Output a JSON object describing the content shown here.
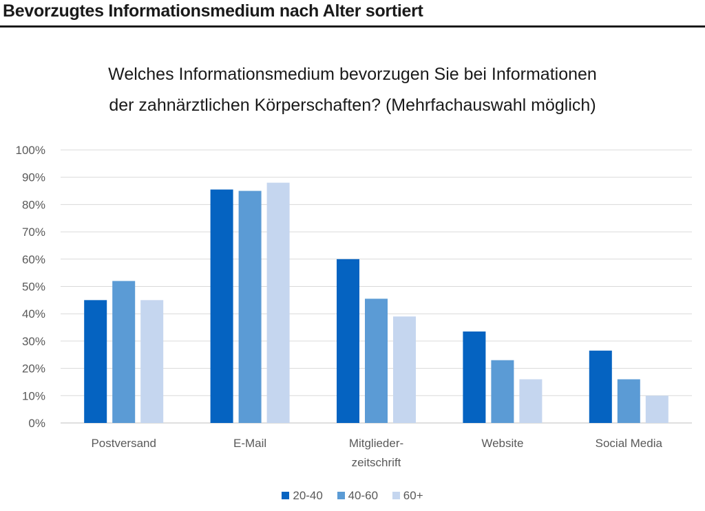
{
  "header": {
    "title": "Bevorzugtes Informationsmedium nach Alter sortiert"
  },
  "chart_data": {
    "type": "bar",
    "title_lines": [
      "Welches Informationsmedium bevorzugen Sie bei Informationen",
      "der zahnärztlichen Körperschaften? (Mehrfachauswahl möglich)"
    ],
    "categories": [
      [
        "Postversand"
      ],
      [
        "E-Mail"
      ],
      [
        "Mitglieder-",
        "zeitschrift"
      ],
      [
        "Website"
      ],
      [
        "Social Media"
      ]
    ],
    "series": [
      {
        "name": "20-40",
        "color": "#0563c1",
        "values": [
          45,
          85.5,
          60,
          33.5,
          26.5
        ]
      },
      {
        "name": "40-60",
        "color": "#5b9bd5",
        "values": [
          52,
          85,
          45.5,
          23,
          16
        ]
      },
      {
        "name": "60+",
        "color": "#c5d6ef",
        "values": [
          45,
          88,
          39,
          16,
          10
        ]
      }
    ],
    "ylim": [
      0,
      100
    ],
    "yticks": [
      "0%",
      "10%",
      "20%",
      "30%",
      "40%",
      "50%",
      "60%",
      "70%",
      "80%",
      "90%",
      "100%"
    ],
    "grid": true,
    "legend": "bottom"
  }
}
